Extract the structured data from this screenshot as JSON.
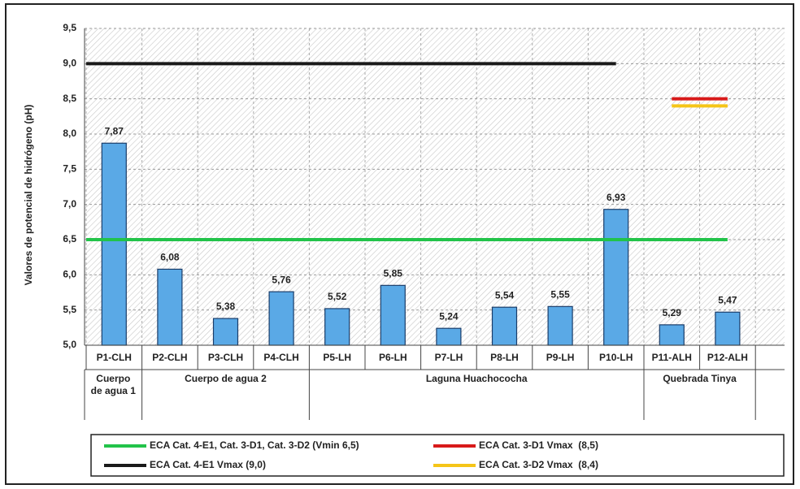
{
  "chart_data": {
    "type": "bar",
    "y_label": "Valores de potencial de hidrógeno (pH)",
    "categories": [
      "P1-CLH",
      "P2-CLH",
      "P3-CLH",
      "P4-CLH",
      "P5-LH",
      "P6-LH",
      "P7-LH",
      "P8-LH",
      "P9-LH",
      "P10-LH",
      "P11-ALH",
      "P12-ALH"
    ],
    "values": [
      7.87,
      6.08,
      5.38,
      5.76,
      5.52,
      5.85,
      5.24,
      5.54,
      5.55,
      6.93,
      5.29,
      5.47
    ],
    "value_labels": [
      "7,87",
      "6,08",
      "5,38",
      "5,76",
      "5,52",
      "5,85",
      "5,24",
      "5,54",
      "5,55",
      "6,93",
      "5,29",
      "5,47"
    ],
    "color": "#5aa9e6",
    "groups": [
      {
        "name": "Cuerpo de agua 1",
        "count": 1
      },
      {
        "name": "Cuerpo de agua 2",
        "count": 3
      },
      {
        "name": "Laguna Huachococha",
        "count": 6
      },
      {
        "name": "Quebrada Tinya",
        "count": 2
      }
    ],
    "series": [
      {
        "name": "ECA Cat. 4-E1, Cat. 3-D1, Cat. 3-D2 (Vmin 6,5)",
        "type": "line",
        "color": "#22c34a",
        "values": [
          6.5,
          6.5,
          6.5,
          6.5,
          6.5,
          6.5,
          6.5,
          6.5,
          6.5,
          6.5,
          6.5,
          6.5
        ]
      },
      {
        "name": "ECA Cat. 3-D1 Vmax  (8,5)",
        "type": "line",
        "color": "#d81a1a",
        "values": [
          null,
          null,
          null,
          null,
          null,
          null,
          null,
          null,
          null,
          null,
          8.5,
          8.5
        ]
      },
      {
        "name": "ECA Cat. 4-E1 Vmax (9,0)",
        "type": "line",
        "color": "#1a1a1a",
        "values": [
          9.0,
          9.0,
          9.0,
          9.0,
          9.0,
          9.0,
          9.0,
          9.0,
          9.0,
          9.0,
          null,
          null
        ]
      },
      {
        "name": "ECA Cat. 3-D2 Vmax  (8,4)",
        "type": "line",
        "color": "#f5c518",
        "values": [
          null,
          null,
          null,
          null,
          null,
          null,
          null,
          null,
          null,
          null,
          8.4,
          8.4
        ]
      }
    ],
    "ylim": [
      5.0,
      9.5
    ],
    "yticks": [
      {
        "value": 5.0,
        "label": "5,0"
      },
      {
        "value": 5.5,
        "label": "5,5"
      },
      {
        "value": 6.0,
        "label": "6,0"
      },
      {
        "value": 6.5,
        "label": "6,5"
      },
      {
        "value": 7.0,
        "label": "7,0"
      },
      {
        "value": 7.5,
        "label": "7,5"
      },
      {
        "value": 8.0,
        "label": "8,0"
      },
      {
        "value": 8.5,
        "label": "8,5"
      },
      {
        "value": 9.0,
        "label": "9,0"
      },
      {
        "value": 9.5,
        "label": "9,5"
      }
    ],
    "grid": true
  }
}
